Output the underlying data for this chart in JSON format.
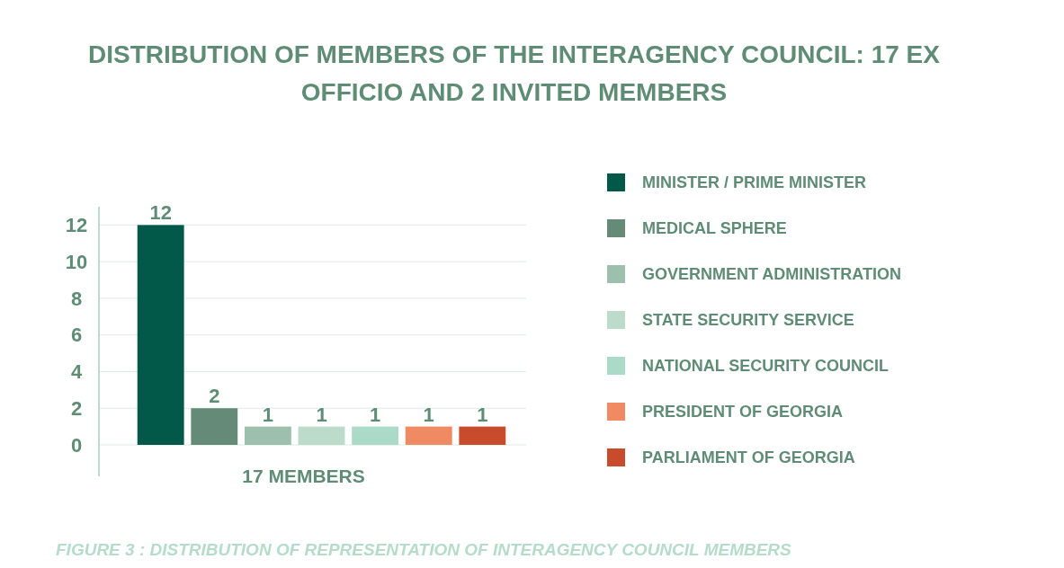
{
  "chart_data": {
    "type": "bar",
    "title": "DISTRIBUTION OF MEMBERS OF THE INTERAGENCY COUNCIL: 17 EX OFFICIO AND 2 INVITED MEMBERS",
    "xlabel": "17 MEMBERS",
    "categories": [
      null
    ],
    "series": [
      {
        "name": "MINISTER / PRIME MINISTER",
        "color": "#02594a",
        "values": [
          12
        ]
      },
      {
        "name": "MEDICAL SPHERE",
        "color": "#658b78",
        "values": [
          2
        ]
      },
      {
        "name": "GOVERNMENT ADMINISTRATION",
        "color": "#9dbfae",
        "values": [
          1
        ]
      },
      {
        "name": "STATE SECURITY SERVICE",
        "color": "#bcdbcb",
        "values": [
          1
        ]
      },
      {
        "name": "NATIONAL SECURITY COUNCIL",
        "color": "#acdac8",
        "values": [
          1
        ]
      },
      {
        "name": "PRESIDENT OF GEORGIA",
        "color": "#ef8a62",
        "values": [
          1
        ]
      },
      {
        "name": "PARLIAMENT OF GEORGIA",
        "color": "#c84b2c",
        "values": [
          1
        ]
      }
    ],
    "ylim": [
      0,
      13
    ],
    "yticks": [
      0,
      2,
      4,
      6,
      8,
      10,
      12
    ],
    "grid": "y",
    "legend": "right",
    "data_labels": true,
    "annotations": [
      "FIGURE 3 : DISTRIBUTION OF REPRESENTATION OF INTERAGENCY COUNCIL MEMBERS"
    ]
  }
}
